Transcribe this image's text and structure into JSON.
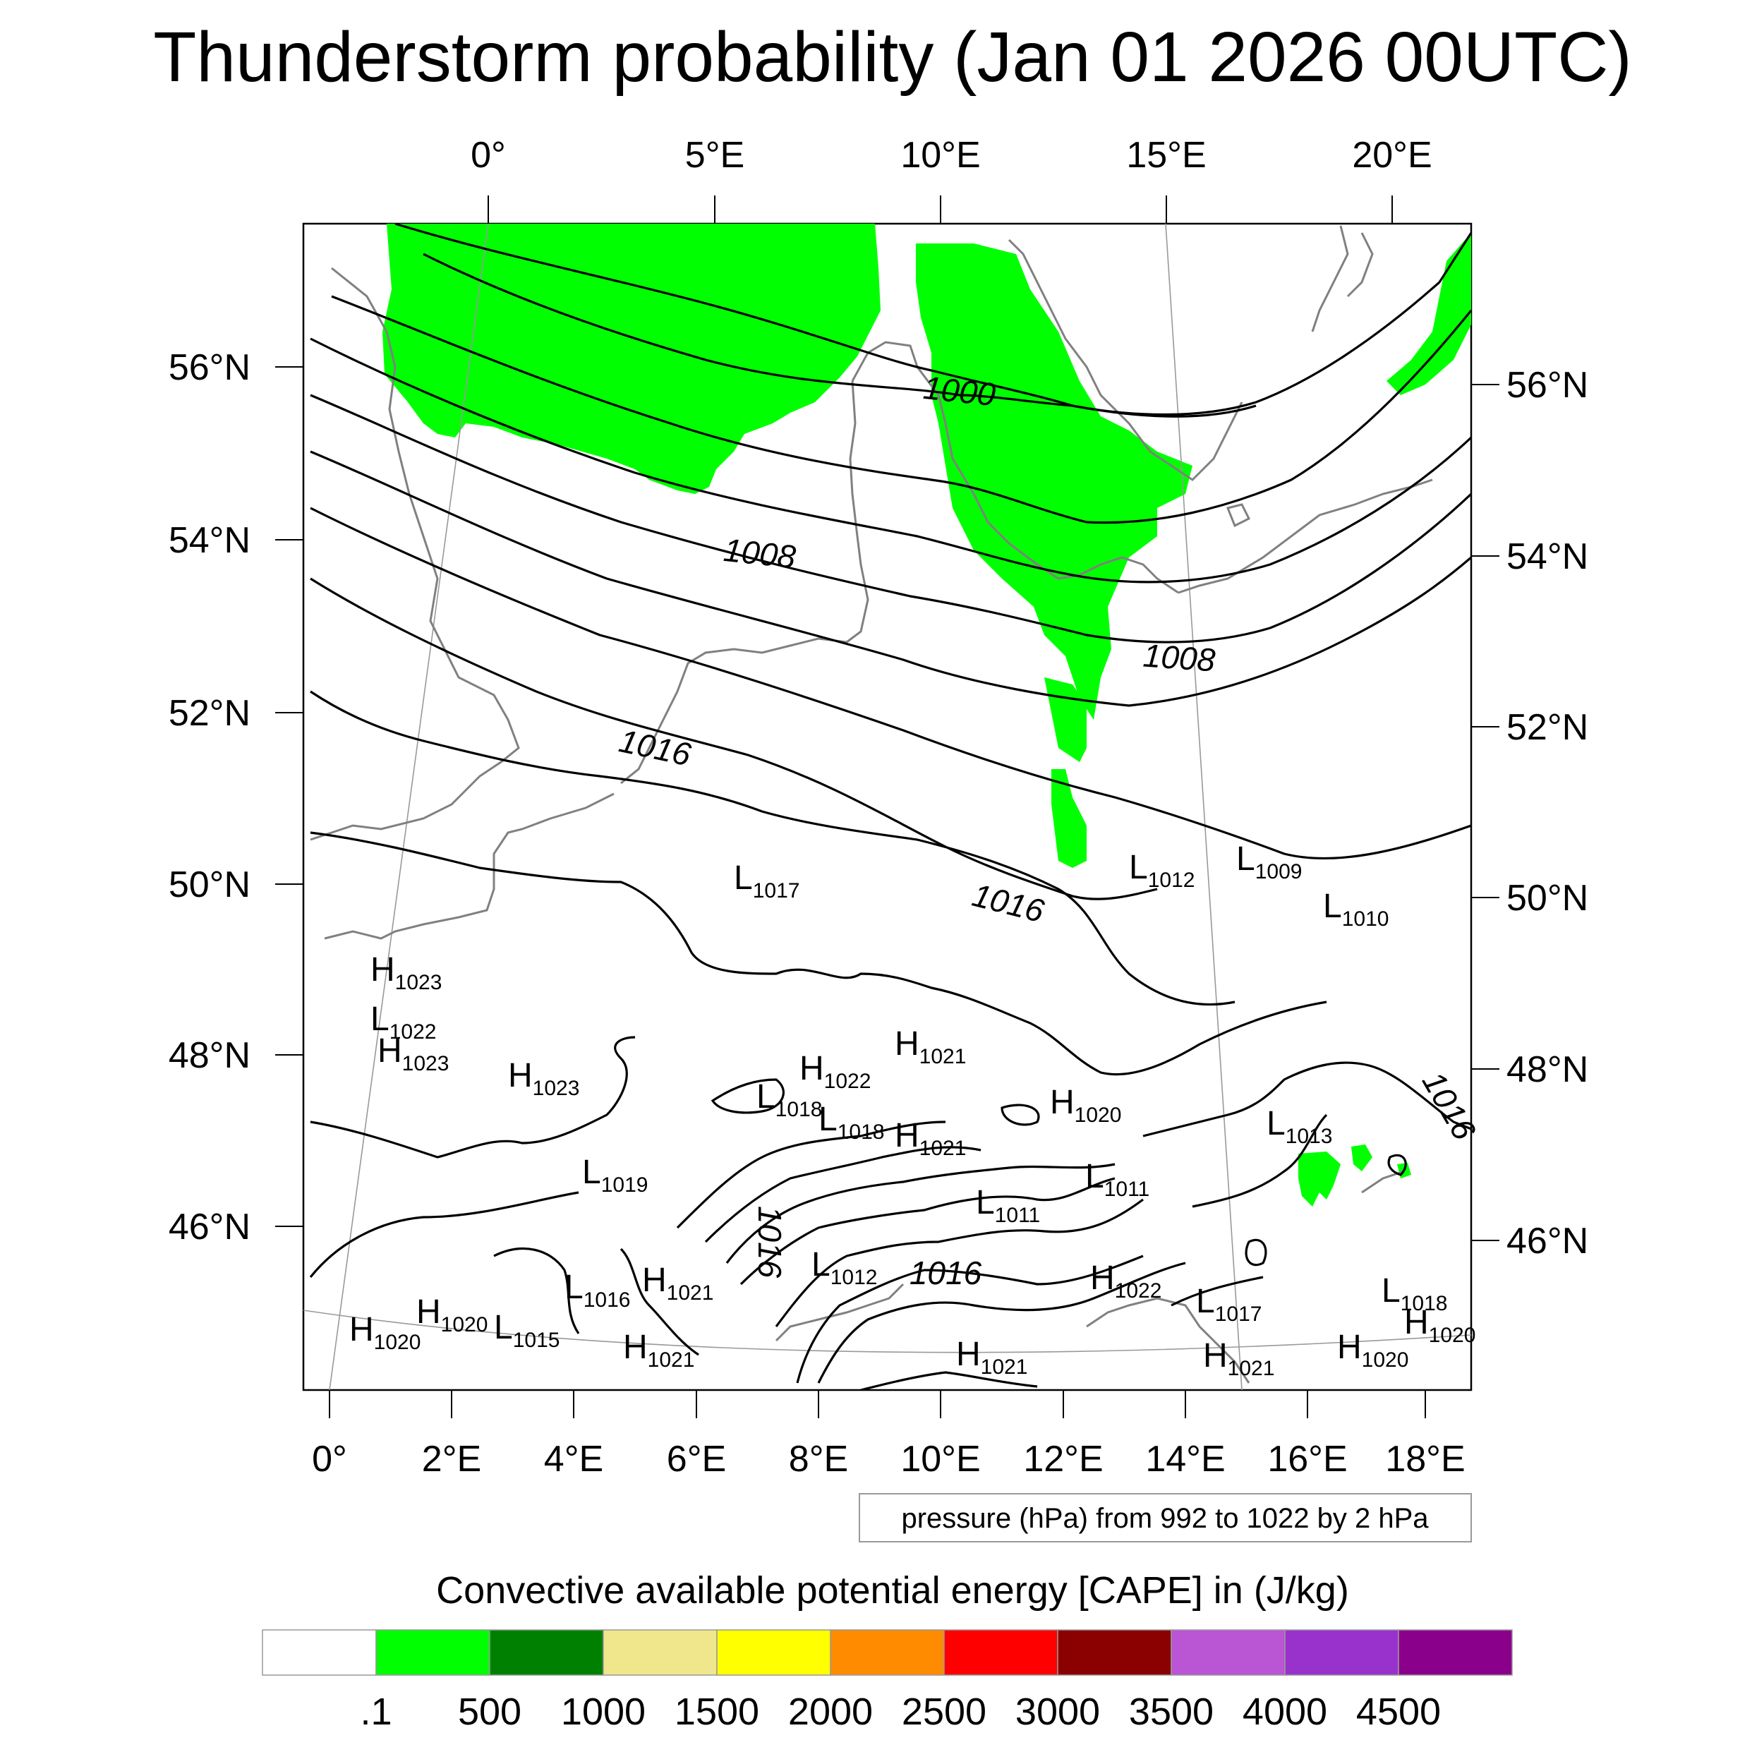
{
  "title": "Thunderstorm probability (Jan 01 2026 00UTC)",
  "top_lon_labels": [
    "0°",
    "5°E",
    "10°E",
    "15°E",
    "20°E"
  ],
  "bottom_lon_labels": [
    "0°",
    "2°E",
    "4°E",
    "6°E",
    "8°E",
    "10°E",
    "12°E",
    "14°E",
    "16°E",
    "18°E"
  ],
  "left_lat_labels": [
    "56°N",
    "54°N",
    "52°N",
    "50°N",
    "48°N",
    "46°N"
  ],
  "right_lat_labels": [
    "56°N",
    "54°N",
    "52°N",
    "50°N",
    "48°N",
    "46°N"
  ],
  "contour_labels": [
    "1000",
    "1008",
    "1008",
    "1016",
    "1016",
    "1016",
    "1016",
    "1016"
  ],
  "pressure_centers": [
    {
      "type": "L",
      "value": "1017"
    },
    {
      "type": "L",
      "value": "1012"
    },
    {
      "type": "L",
      "value": "1009"
    },
    {
      "type": "L",
      "value": "1010"
    },
    {
      "type": "H",
      "value": "1023"
    },
    {
      "type": "L",
      "value": "1022"
    },
    {
      "type": "H",
      "value": "1023"
    },
    {
      "type": "H",
      "value": "1023"
    },
    {
      "type": "H",
      "value": "1021"
    },
    {
      "type": "H",
      "value": "1022"
    },
    {
      "type": "L",
      "value": "1018"
    },
    {
      "type": "L",
      "value": "1018"
    },
    {
      "type": "H",
      "value": "1020"
    },
    {
      "type": "H",
      "value": "1021"
    },
    {
      "type": "L",
      "value": "1013"
    },
    {
      "type": "L",
      "value": "1019"
    },
    {
      "type": "L",
      "value": "1011"
    },
    {
      "type": "L",
      "value": "1011"
    },
    {
      "type": "L",
      "value": "1016"
    },
    {
      "type": "H",
      "value": "1021"
    },
    {
      "type": "L",
      "value": "1012"
    },
    {
      "type": "H",
      "value": "1022"
    },
    {
      "type": "L",
      "value": "1017"
    },
    {
      "type": "L",
      "value": "1018"
    },
    {
      "type": "H",
      "value": "1020"
    },
    {
      "type": "H",
      "value": "1020"
    },
    {
      "type": "H",
      "value": "1020"
    },
    {
      "type": "L",
      "value": "1015"
    },
    {
      "type": "H",
      "value": "1021"
    },
    {
      "type": "H",
      "value": "1021"
    },
    {
      "type": "H",
      "value": "1021"
    },
    {
      "type": "H",
      "value": "1020"
    }
  ],
  "contour_note": "pressure (hPa) from 992 to 1022 by 2 hPa",
  "colorbar": {
    "title": "Convective available potential energy [CAPE] in (J/kg)",
    "colors": [
      "#ffffff",
      "#00ff00",
      "#008000",
      "#f0e68c",
      "#ffff00",
      "#ff8c00",
      "#ff0000",
      "#8b0000",
      "#ba55d3",
      "#9932cc",
      "#8b008b"
    ],
    "labels": [
      ".1",
      "500",
      "1000",
      "1500",
      "2000",
      "2500",
      "3000",
      "3500",
      "4000",
      "4500"
    ]
  }
}
